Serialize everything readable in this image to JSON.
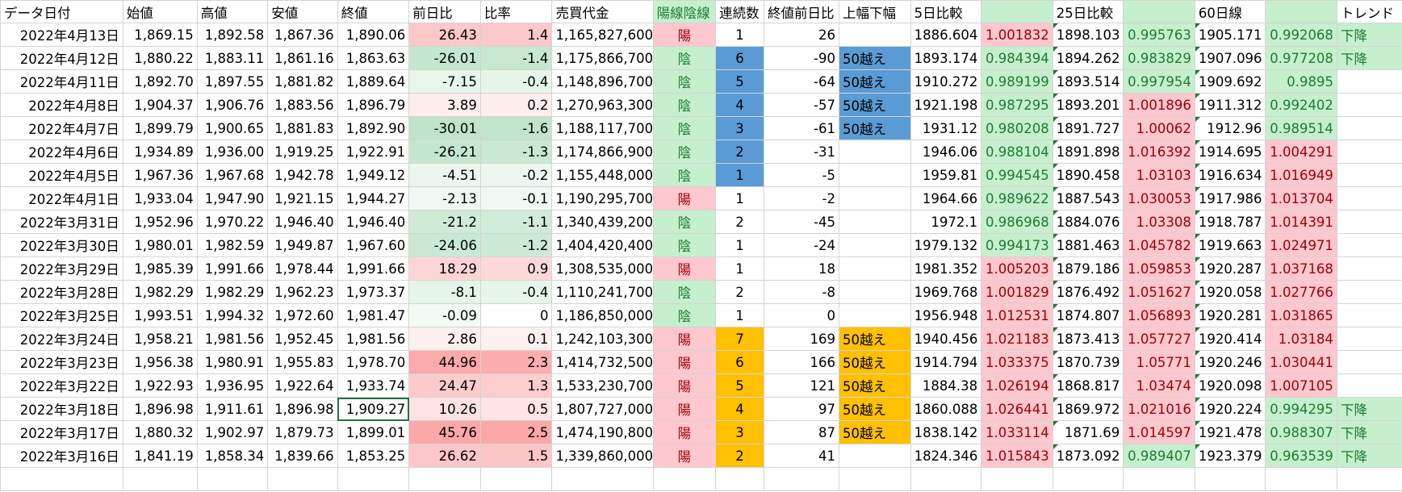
{
  "table": {
    "header": [
      "データ日付",
      "始値",
      "高値",
      "安値",
      "終値",
      "前日比",
      "比率",
      "売買代金",
      "陽線陰線",
      "連続数",
      "終値前日比",
      "上幅下幅",
      "5日比較",
      null,
      "25日比較",
      null,
      "60日線",
      null,
      "トレンド"
    ],
    "rows": [
      [
        "2022年4月13日",
        "1,869.15",
        "1,892.58",
        "1,867.36",
        "1,890.06",
        "26.43",
        "1.4",
        "1,165,827,600",
        "陽",
        "1",
        "26",
        null,
        "1886.604",
        "1.001832",
        "1898.103",
        "0.995763",
        "1905.171",
        "0.992068",
        "下降"
      ],
      [
        "2022年4月12日",
        "1,880.22",
        "1,883.11",
        "1,861.16",
        "1,863.63",
        "-26.01",
        "-1.4",
        "1,175,866,700",
        "陰",
        "6",
        "-90",
        "50越え",
        "1893.174",
        "0.984394",
        "1894.262",
        "0.983829",
        "1907.096",
        "0.977208",
        "下降"
      ],
      [
        "2022年4月11日",
        "1,892.70",
        "1,897.55",
        "1,881.82",
        "1,889.64",
        "-7.15",
        "-0.4",
        "1,148,896,700",
        "陰",
        "5",
        "-64",
        "50越え",
        "1910.272",
        "0.989199",
        "1893.514",
        "0.997954",
        "1909.692",
        "0.9895",
        null
      ],
      [
        "2022年4月8日",
        "1,904.37",
        "1,906.76",
        "1,883.56",
        "1,896.79",
        "3.89",
        "0.2",
        "1,270,963,300",
        "陰",
        "4",
        "-57",
        "50越え",
        "1921.198",
        "0.987295",
        "1893.201",
        "1.001896",
        "1911.312",
        "0.992402",
        null
      ],
      [
        "2022年4月7日",
        "1,899.79",
        "1,900.65",
        "1,881.83",
        "1,892.90",
        "-30.01",
        "-1.6",
        "1,188,117,700",
        "陰",
        "3",
        "-61",
        "50越え",
        "1931.12",
        "0.980208",
        "1891.727",
        "1.00062",
        "1912.96",
        "0.989514",
        null
      ],
      [
        "2022年4月6日",
        "1,934.89",
        "1,936.00",
        "1,919.25",
        "1,922.91",
        "-26.21",
        "-1.3",
        "1,174,866,900",
        "陰",
        "2",
        "-31",
        null,
        "1946.06",
        "0.988104",
        "1891.898",
        "1.016392",
        "1914.695",
        "1.004291",
        null
      ],
      [
        "2022年4月5日",
        "1,967.36",
        "1,967.68",
        "1,942.78",
        "1,949.12",
        "-4.51",
        "-0.2",
        "1,155,448,000",
        "陰",
        "1",
        "-5",
        null,
        "1959.81",
        "0.994545",
        "1890.458",
        "1.03103",
        "1916.634",
        "1.016949",
        null
      ],
      [
        "2022年4月1日",
        "1,933.04",
        "1,947.90",
        "1,921.15",
        "1,944.27",
        "-2.13",
        "-0.1",
        "1,190,295,700",
        "陽",
        "1",
        "-2",
        null,
        "1964.66",
        "0.989622",
        "1887.543",
        "1.030053",
        "1917.986",
        "1.013704",
        null
      ],
      [
        "2022年3月31日",
        "1,952.96",
        "1,970.22",
        "1,946.40",
        "1,946.40",
        "-21.2",
        "-1.1",
        "1,340,439,200",
        "陰",
        "2",
        "-45",
        null,
        "1972.1",
        "0.986968",
        "1884.076",
        "1.03308",
        "1918.787",
        "1.014391",
        null
      ],
      [
        "2022年3月30日",
        "1,980.01",
        "1,982.59",
        "1,949.87",
        "1,967.60",
        "-24.06",
        "-1.2",
        "1,404,420,400",
        "陰",
        "1",
        "-24",
        null,
        "1979.132",
        "0.994173",
        "1881.463",
        "1.045782",
        "1919.663",
        "1.024971",
        null
      ],
      [
        "2022年3月29日",
        "1,985.39",
        "1,991.66",
        "1,978.44",
        "1,991.66",
        "18.29",
        "0.9",
        "1,308,535,000",
        "陽",
        "1",
        "18",
        null,
        "1981.352",
        "1.005203",
        "1879.186",
        "1.059853",
        "1920.287",
        "1.037168",
        null
      ],
      [
        "2022年3月28日",
        "1,982.29",
        "1,982.29",
        "1,962.23",
        "1,973.37",
        "-8.1",
        "-0.4",
        "1,110,241,700",
        "陰",
        "2",
        "-8",
        null,
        "1969.768",
        "1.001829",
        "1876.492",
        "1.051627",
        "1920.058",
        "1.027766",
        null
      ],
      [
        "2022年3月25日",
        "1,993.51",
        "1,994.32",
        "1,972.60",
        "1,981.47",
        "-0.09",
        "0",
        "1,186,850,000",
        "陰",
        "1",
        "0",
        null,
        "1956.948",
        "1.012531",
        "1874.807",
        "1.056893",
        "1920.281",
        "1.031865",
        null
      ],
      [
        "2022年3月24日",
        "1,958.21",
        "1,981.56",
        "1,952.45",
        "1,981.56",
        "2.86",
        "0.1",
        "1,242,103,300",
        "陽",
        "7",
        "169",
        "50越え",
        "1940.456",
        "1.021183",
        "1873.413",
        "1.057727",
        "1920.414",
        "1.03184",
        null
      ],
      [
        "2022年3月23日",
        "1,956.38",
        "1,980.91",
        "1,955.83",
        "1,978.70",
        "44.96",
        "2.3",
        "1,414,732,500",
        "陽",
        "6",
        "166",
        "50越え",
        "1914.794",
        "1.033375",
        "1870.739",
        "1.05771",
        "1920.246",
        "1.030441",
        null
      ],
      [
        "2022年3月22日",
        "1,922.93",
        "1,936.95",
        "1,922.64",
        "1,933.74",
        "24.47",
        "1.3",
        "1,533,230,700",
        "陽",
        "5",
        "121",
        "50越え",
        "1884.38",
        "1.026194",
        "1868.817",
        "1.03474",
        "1920.098",
        "1.007105",
        null
      ],
      [
        "2022年3月18日",
        "1,896.98",
        "1,911.61",
        "1,896.98",
        "1,909.27",
        "10.26",
        "0.5",
        "1,807,727,000",
        "陽",
        "4",
        "97",
        "50越え",
        "1860.088",
        "1.026441",
        "1869.972",
        "1.021016",
        "1920.224",
        "0.994295",
        "下降"
      ],
      [
        "2022年3月17日",
        "1,880.32",
        "1,902.97",
        "1,879.73",
        "1,899.01",
        "45.76",
        "2.5",
        "1,474,190,800",
        "陽",
        "3",
        "87",
        "50越え",
        "1838.142",
        "1.033114",
        "1871.69",
        "1.014597",
        "1921.478",
        "0.988307",
        "下降"
      ],
      [
        "2022年3月16日",
        "1,841.19",
        "1,858.34",
        "1,839.66",
        "1,853.25",
        "26.62",
        "1.5",
        "1,339,860,000",
        "陽",
        "2",
        "41",
        null,
        "1824.346",
        "1.015843",
        "1873.092",
        "0.989407",
        "1923.379",
        "0.963539",
        "下降"
      ]
    ]
  }
}
